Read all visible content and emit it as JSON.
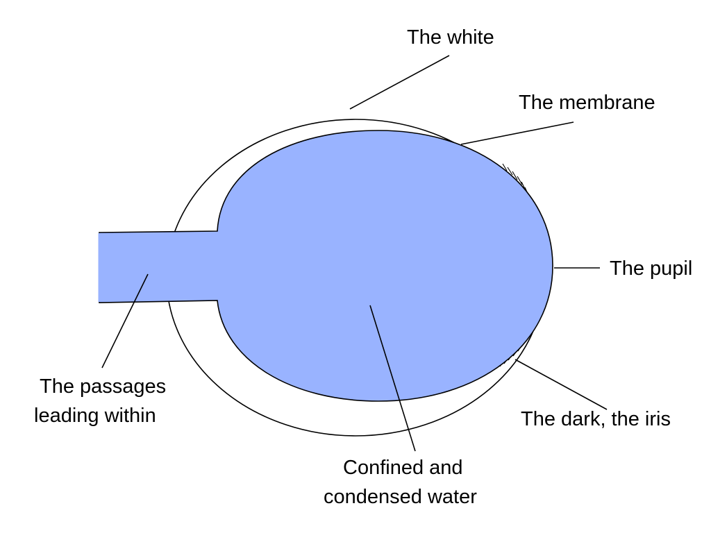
{
  "colors": {
    "background": "#ffffff",
    "water_fill": "#99b3ff",
    "outline": "#000000"
  },
  "labels": {
    "white": "The white",
    "membrane": "The membrane",
    "pupil": "The pupil",
    "iris": "The dark, the iris",
    "passages_line1": "The passages",
    "passages_line2": "leading within",
    "water_line1": "Confined and",
    "water_line2": "condensed water"
  }
}
